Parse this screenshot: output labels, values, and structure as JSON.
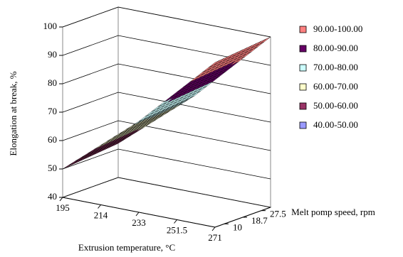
{
  "chart_data": {
    "type": "surface",
    "x_label": "Extrusion temperature, °C",
    "y_label": "Melt pomp speed, rpm",
    "z_label": "Elongation at break, %",
    "categories": [
      "195",
      "214",
      "233",
      "251.5",
      "271"
    ],
    "depth_categories": [
      "10",
      "18.7",
      "27.5"
    ],
    "series": [
      {
        "name": "10",
        "values": [
          50,
          61,
          72,
          85,
          98
        ]
      },
      {
        "name": "18.7",
        "values": [
          51,
          62,
          73,
          86,
          99
        ]
      },
      {
        "name": "27.5",
        "values": [
          52,
          63,
          74,
          87,
          100
        ]
      }
    ],
    "zlim": [
      40,
      100
    ],
    "zticks": [
      40,
      50,
      60,
      70,
      80,
      90,
      100
    ],
    "grid": true,
    "legend": [
      {
        "label": "90.00-100.00",
        "min": 90,
        "max": 100,
        "color": "#ff8080"
      },
      {
        "label": "80.00-90.00",
        "min": 80,
        "max": 90,
        "color": "#660066"
      },
      {
        "label": "70.00-80.00",
        "min": 70,
        "max": 80,
        "color": "#ccffff"
      },
      {
        "label": "60.00-70.00",
        "min": 60,
        "max": 70,
        "color": "#ffffcc"
      },
      {
        "label": "50.00-60.00",
        "min": 50,
        "max": 60,
        "color": "#993366"
      },
      {
        "label": "40.00-50.00",
        "min": 40,
        "max": 50,
        "color": "#9999ff"
      }
    ]
  }
}
